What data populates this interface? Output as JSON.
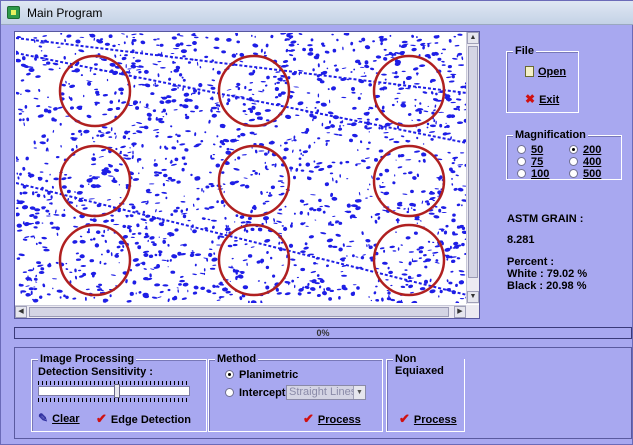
{
  "window": {
    "title": "Main Program"
  },
  "file_group": {
    "label": "File",
    "open_label": "Open",
    "exit_label": "Exit"
  },
  "magnification": {
    "label": "Magnification",
    "options": [
      {
        "label": "50",
        "selected": false
      },
      {
        "label": "200",
        "selected": true
      },
      {
        "label": "75",
        "selected": false
      },
      {
        "label": "400",
        "selected": false
      },
      {
        "label": "100",
        "selected": false
      },
      {
        "label": "500",
        "selected": false
      }
    ]
  },
  "results": {
    "astm_label": "ASTM GRAIN :",
    "astm_value": "8.281",
    "percent_label": "Percent :",
    "white_label": "White :",
    "white_value": "79.02 %",
    "black_label": "Black :",
    "black_value": "20.98 %"
  },
  "progress": {
    "text": "0%",
    "value": 0
  },
  "image_processing": {
    "label": "Image Processing",
    "sensitivity_label": "Detection Sensitivity :",
    "sensitivity_value": 0.52,
    "clear_label": "Clear",
    "edge_label": "Edge Detection"
  },
  "method": {
    "label": "Method",
    "planimetric_label": "Planimetric",
    "intercept_label": "Intercept",
    "select_value": "Straight Lines",
    "process_label": "Process"
  },
  "non_equiaxed": {
    "label": "Non Equiaxed",
    "process_label": "Process"
  },
  "colors": {
    "accent_red": "#d01010",
    "window_bg": "#a8a8f0",
    "speckle": "#1e1ee6",
    "circle": "#b02020"
  }
}
